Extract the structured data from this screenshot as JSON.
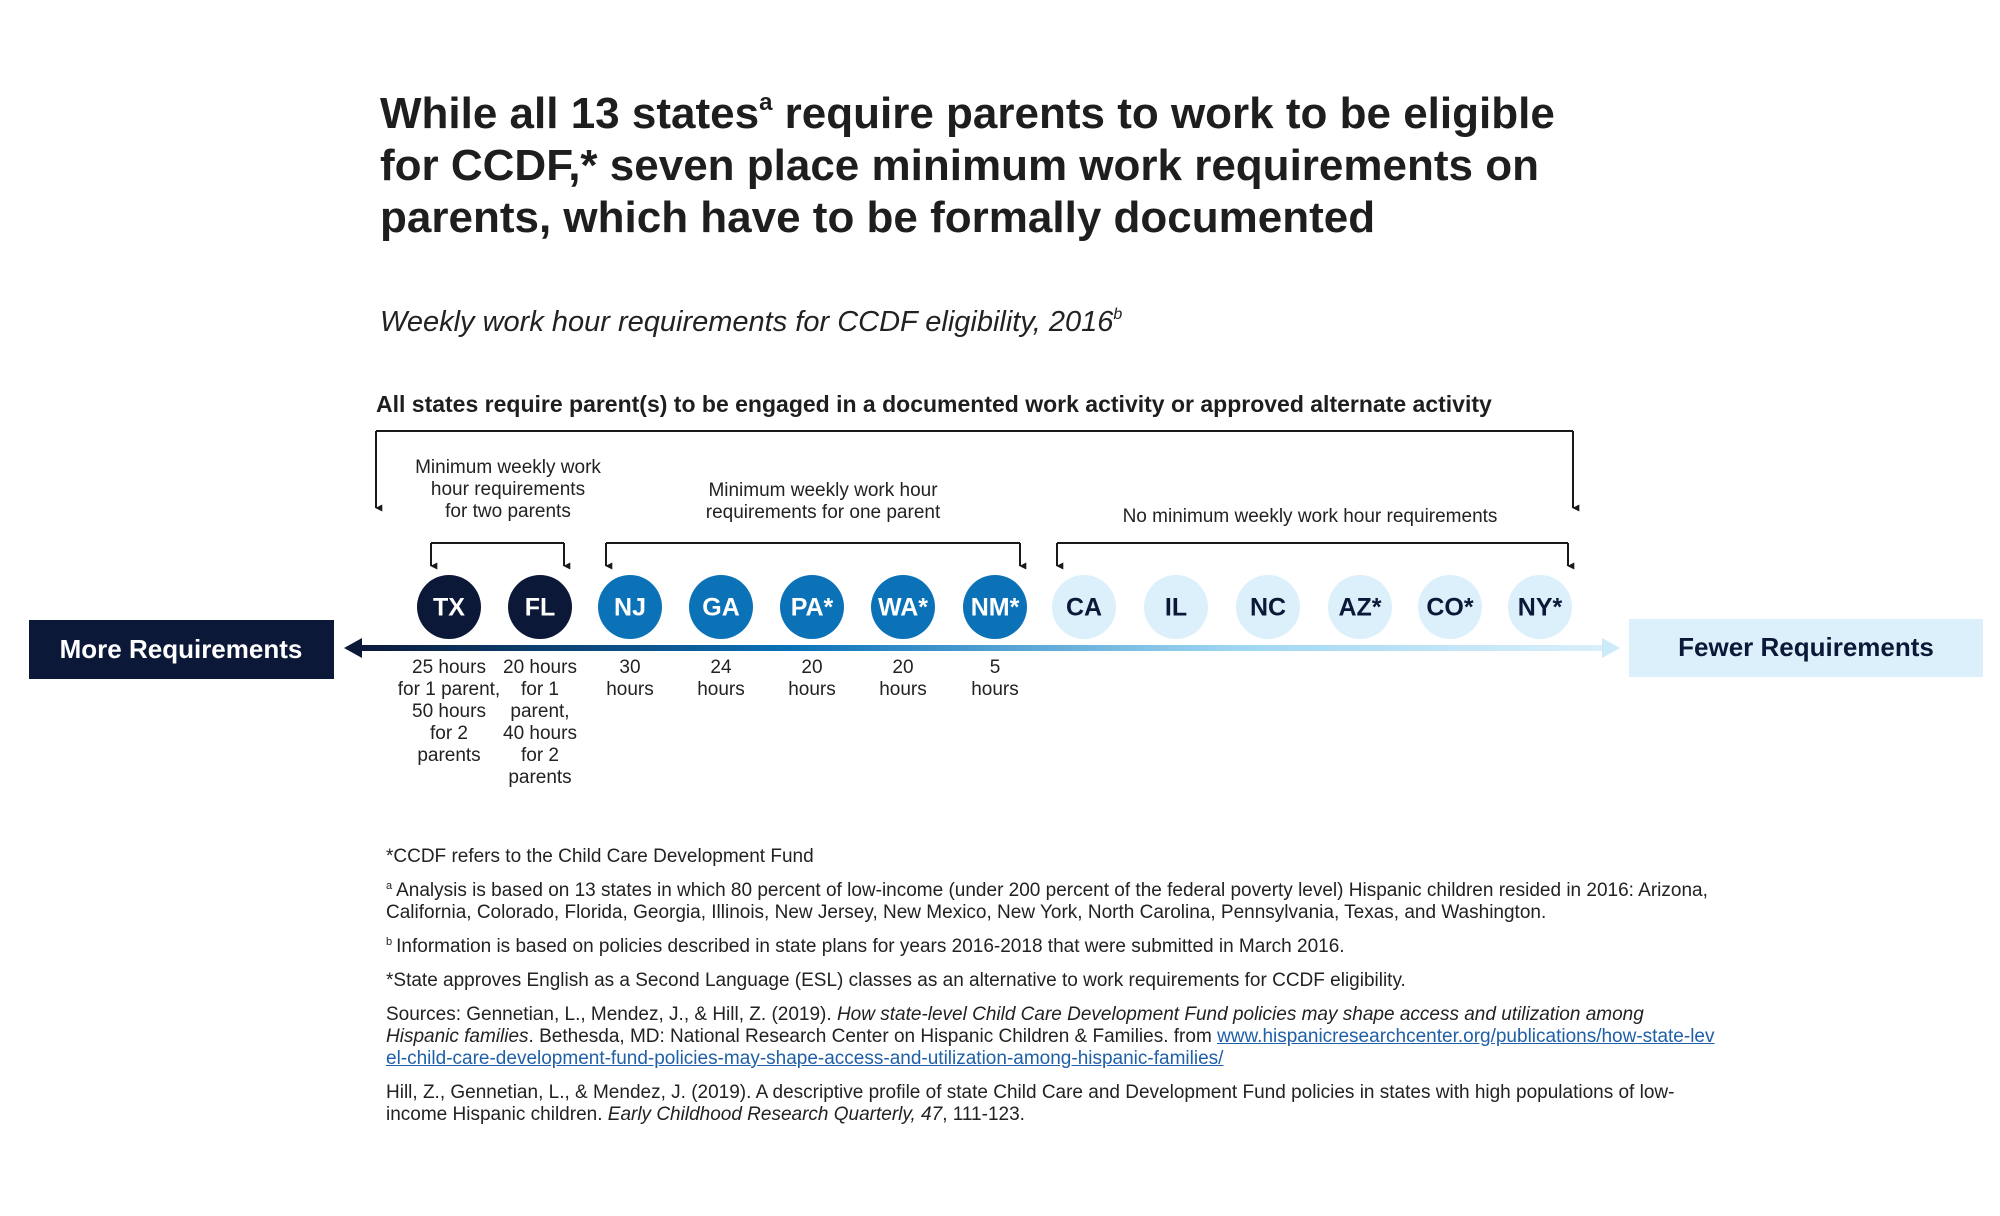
{
  "title": {
    "before": "While all 13 states",
    "sup": "a",
    "after": " require parents to work to be eligible for CCDF,* seven place minimum work requirements on parents, which have to be formally documented"
  },
  "subtitle": {
    "text": "Weekly work hour requirements for CCDF eligibility, 2016",
    "sup": "b"
  },
  "top_label": "All states require parent(s) to be engaged in a documented work activity or approved alternate activity",
  "groups": [
    {
      "lines": [
        "Minimum weekly work",
        "hour requirements",
        "for two parents"
      ]
    },
    {
      "lines": [
        "Minimum weekly work hour",
        "requirements for one parent"
      ]
    },
    {
      "lines": [
        "No minimum weekly work hour requirements"
      ]
    }
  ],
  "left_label": "More Requirements",
  "right_label": "Fewer Requirements",
  "states": [
    {
      "code": "TX",
      "fill": "#0c1838",
      "text_color": "#ffffff",
      "note": [
        "25 hours",
        "for 1 parent,",
        "50 hours",
        "for 2",
        "parents"
      ]
    },
    {
      "code": "FL",
      "fill": "#0c1838",
      "text_color": "#ffffff",
      "note": [
        "20 hours",
        "for 1",
        "parent,",
        "40 hours",
        "for 2",
        "parents"
      ]
    },
    {
      "code": "NJ",
      "fill": "#0c72b8",
      "text_color": "#ffffff",
      "note": [
        "30",
        "hours"
      ]
    },
    {
      "code": "GA",
      "fill": "#0c72b8",
      "text_color": "#ffffff",
      "note": [
        "24",
        "hours"
      ]
    },
    {
      "code": "PA*",
      "fill": "#0c72b8",
      "text_color": "#ffffff",
      "note": [
        "20",
        "hours"
      ]
    },
    {
      "code": "WA*",
      "fill": "#0c72b8",
      "text_color": "#ffffff",
      "note": [
        "20",
        "hours"
      ]
    },
    {
      "code": "NM*",
      "fill": "#0c72b8",
      "text_color": "#ffffff",
      "note": [
        "5",
        "hours"
      ]
    },
    {
      "code": "CA",
      "fill": "#dcf0fb",
      "text_color": "#0c1838"
    },
    {
      "code": "IL",
      "fill": "#dcf0fb",
      "text_color": "#0c1838"
    },
    {
      "code": "NC",
      "fill": "#dcf0fb",
      "text_color": "#0c1838"
    },
    {
      "code": "AZ*",
      "fill": "#dcf0fb",
      "text_color": "#0c1838"
    },
    {
      "code": "CO*",
      "fill": "#dcf0fb",
      "text_color": "#0c1838"
    },
    {
      "code": "NY*",
      "fill": "#dcf0fb",
      "text_color": "#0c1838"
    }
  ],
  "footnotes": [
    {
      "segments": [
        {
          "text": "*CCDF refers to the Child Care Development Fund"
        }
      ]
    },
    {
      "marker": "a",
      "segments": [
        {
          "text": "Analysis is based on 13 states in which 80 percent of low-income (under 200 percent of the federal poverty level) Hispanic children resided in 2016: Arizona, California, Colorado, Florida, Georgia, Illinois, New Jersey, New Mexico, New York, North Carolina, Pennsylvania, Texas, and Washington."
        }
      ]
    },
    {
      "marker": "b",
      "segments": [
        {
          "text": "Information is based on policies described in state plans for years 2016-2018 that were submitted in March 2016."
        }
      ]
    },
    {
      "segments": [
        {
          "text": "*State approves English as a Second Language (ESL) classes as an alternative to work requirements for CCDF eligibility."
        }
      ]
    },
    {
      "segments": [
        {
          "text": "Sources: Gennetian, L., Mendez, J., & Hill, Z. (2019). "
        },
        {
          "text": "How state-level Child Care Development Fund policies may shape access and utilization among Hispanic families",
          "style": "italic"
        },
        {
          "text": ". Bethesda, MD: National Research Center on Hispanic Children & Families. from "
        },
        {
          "text": "www.hispanicresearchcenter.org/publications/how-state-level-child-care-development-fund-policies-may-shape-access-and-utilization-among-hispanic-families/",
          "style": "link"
        }
      ]
    },
    {
      "segments": [
        {
          "text": "Hill, Z., Gennetian, L., & Mendez, J. (2019). A descriptive profile of state Child Care and Development Fund policies in states with high populations of low-income Hispanic children. "
        },
        {
          "text": "Early Childhood Research Quarterly, 47",
          "style": "italic"
        },
        {
          "text": ", 111-123."
        }
      ]
    }
  ]
}
